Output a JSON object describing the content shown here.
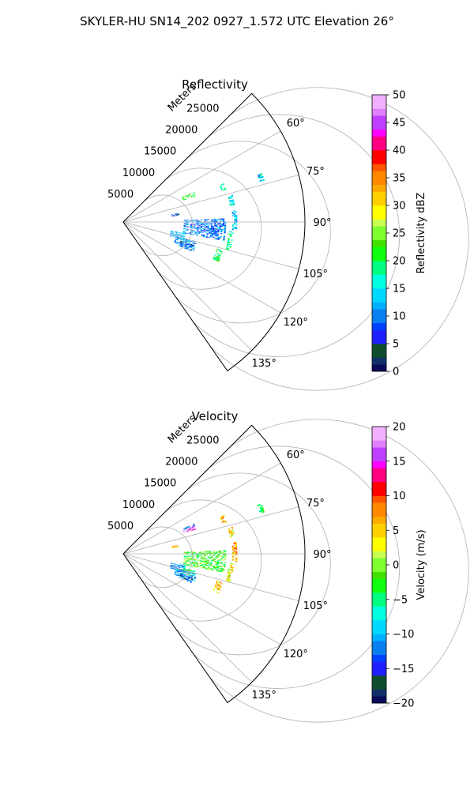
{
  "figure": {
    "suptitle": "SKYLER-HU  SN14_202  0927_1.572 UTC Elevation 26°"
  },
  "chart_data": [
    {
      "type": "heatmap",
      "projection": "polar-sector",
      "title": "Reflectivity",
      "radial_axis_label": "Meters",
      "radial_range": [
        0,
        30000
      ],
      "radial_ticks": [
        5000,
        10000,
        15000,
        20000,
        25000
      ],
      "radial_tick_labels": [
        "5000",
        "10000",
        "15000",
        "20000",
        "25000"
      ],
      "azimuth_range_deg": [
        45,
        145
      ],
      "azimuth_ticks_deg": [
        60,
        75,
        90,
        105,
        120,
        135
      ],
      "azimuth_tick_labels": [
        "60°",
        "75°",
        "90°",
        "105°",
        "120°",
        "135°"
      ],
      "grid": true,
      "colorbar": {
        "label": "Reflectivity dBZ",
        "range": [
          0,
          50
        ],
        "ticks": [
          0,
          5,
          10,
          15,
          20,
          25,
          30,
          35,
          40,
          45,
          50
        ],
        "tick_labels": [
          "0",
          "5",
          "10",
          "15",
          "20",
          "25",
          "30",
          "35",
          "40",
          "45",
          "50"
        ]
      },
      "echoes": [
        {
          "az_range": [
            67,
            70.5
          ],
          "r_range": [
            10500,
            12500
          ],
          "value": 22
        },
        {
          "az_range": [
            81,
            83
          ],
          "r_range": [
            8000,
            9200
          ],
          "value": 6
        },
        {
          "az_range": [
            100,
            107
          ],
          "r_range": [
            8000,
            10500
          ],
          "value": 12
        },
        {
          "az_range": [
            105,
            112
          ],
          "r_range": [
            9000,
            12500
          ],
          "value": 11
        },
        {
          "az_range": [
            108,
            113
          ],
          "r_range": [
            10000,
            12000
          ],
          "value": 8
        },
        {
          "az_range": [
            69,
            73
          ],
          "r_range": [
            17000,
            17800
          ],
          "value": 16
        },
        {
          "az_range": [
            76,
            81
          ],
          "r_range": [
            17800,
            18600
          ],
          "value": 15
        },
        {
          "az_range": [
            84,
            94
          ],
          "r_range": [
            18000,
            18800
          ],
          "value": 14
        },
        {
          "az_range": [
            95,
            105
          ],
          "r_range": [
            17500,
            18300
          ],
          "value": 18
        },
        {
          "az_range": [
            106,
            112
          ],
          "r_range": [
            16000,
            17000
          ],
          "value": 20
        },
        {
          "az_range": [
            70,
            73
          ],
          "r_range": [
            23500,
            24200
          ],
          "value": 14
        },
        {
          "az_range": [
            88,
            100
          ],
          "r_range": [
            10000,
            17000
          ],
          "value": 10
        }
      ]
    },
    {
      "type": "heatmap",
      "projection": "polar-sector",
      "title": "Velocity",
      "radial_axis_label": "Meters",
      "radial_range": [
        0,
        30000
      ],
      "radial_ticks": [
        5000,
        10000,
        15000,
        20000,
        25000
      ],
      "radial_tick_labels": [
        "5000",
        "10000",
        "15000",
        "20000",
        "25000"
      ],
      "azimuth_range_deg": [
        45,
        145
      ],
      "azimuth_ticks_deg": [
        60,
        75,
        90,
        105,
        120,
        135
      ],
      "azimuth_tick_labels": [
        "60°",
        "75°",
        "90°",
        "105°",
        "120°",
        "135°"
      ],
      "grid": true,
      "colorbar": {
        "label": "Velocity (m/s)",
        "range": [
          -20,
          20
        ],
        "ticks": [
          -20,
          -15,
          -10,
          -5,
          0,
          5,
          10,
          15,
          20
        ],
        "tick_labels": [
          "−20",
          "−15",
          "−10",
          "−5",
          "0",
          "5",
          "10",
          "15",
          "20"
        ]
      },
      "echoes": [
        {
          "az_range": [
            67,
            68.5
          ],
          "r_range": [
            10500,
            12500
          ],
          "value": -12
        },
        {
          "az_range": [
            68.5,
            71
          ],
          "r_range": [
            10500,
            12500
          ],
          "value": 16
        },
        {
          "az_range": [
            81,
            83
          ],
          "r_range": [
            8000,
            9200
          ],
          "value": 6
        },
        {
          "az_range": [
            100,
            107
          ],
          "r_range": [
            8000,
            10500
          ],
          "value": -11
        },
        {
          "az_range": [
            103,
            108
          ],
          "r_range": [
            10000,
            12000
          ],
          "value": -4
        },
        {
          "az_range": [
            105,
            112
          ],
          "r_range": [
            9000,
            12500
          ],
          "value": -10
        },
        {
          "az_range": [
            109,
            113
          ],
          "r_range": [
            10000,
            12000
          ],
          "value": -14
        },
        {
          "az_range": [
            69,
            73
          ],
          "r_range": [
            17000,
            17800
          ],
          "value": 6
        },
        {
          "az_range": [
            76,
            81
          ],
          "r_range": [
            17800,
            18600
          ],
          "value": 4
        },
        {
          "az_range": [
            84,
            94
          ],
          "r_range": [
            18000,
            18800
          ],
          "value": 7
        },
        {
          "az_range": [
            95,
            105
          ],
          "r_range": [
            17500,
            18300
          ],
          "value": 3
        },
        {
          "az_range": [
            106,
            112
          ],
          "r_range": [
            16000,
            17000
          ],
          "value": 5
        },
        {
          "az_range": [
            70,
            73
          ],
          "r_range": [
            23500,
            24200
          ],
          "value": -2
        },
        {
          "az_range": [
            88,
            100
          ],
          "r_range": [
            10000,
            17000
          ],
          "value": -2
        }
      ]
    }
  ]
}
